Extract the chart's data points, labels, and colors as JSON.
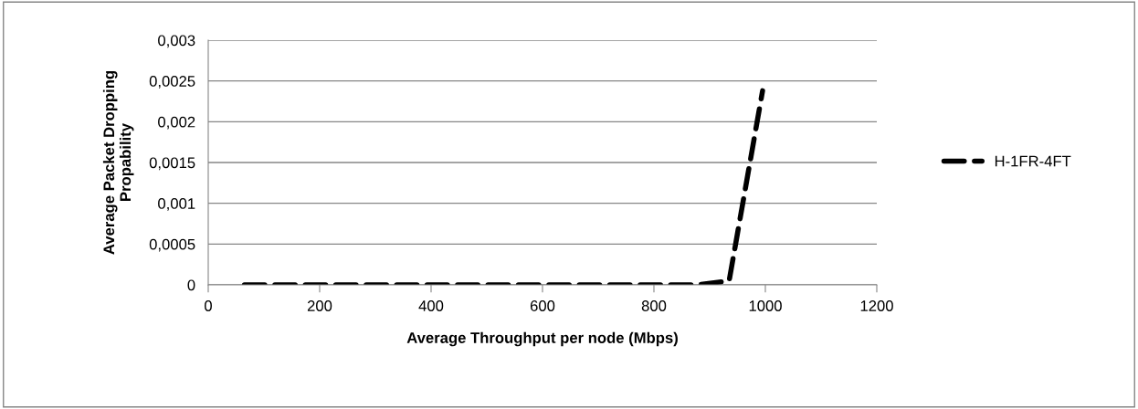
{
  "chart_data": {
    "type": "line",
    "xlabel": "Average Throughput per node (Mbps)",
    "ylabel": "Average Packet Dropping\nPropability",
    "series": [
      {
        "name": "H-1FR-4FT",
        "color": "#000000",
        "x": [
          65,
          500,
          880,
          935,
          995
        ],
        "values": [
          0,
          0,
          0,
          5e-05,
          0.00238
        ]
      }
    ],
    "xlim": [
      0,
      1200
    ],
    "xticks": [
      0,
      200,
      400,
      600,
      800,
      1000,
      1200
    ],
    "ylim": [
      0,
      0.003
    ],
    "yticks": [
      {
        "value": 0,
        "label": "0"
      },
      {
        "value": 0.0005,
        "label": "0,0005"
      },
      {
        "value": 0.001,
        "label": "0,001"
      },
      {
        "value": 0.0015,
        "label": "0,0015"
      },
      {
        "value": 0.002,
        "label": "0,002"
      },
      {
        "value": 0.0025,
        "label": "0,0025"
      },
      {
        "value": 0.003,
        "label": "0,003"
      }
    ],
    "grid": "y",
    "legend": "right",
    "line_style": "dashed",
    "marker": "none"
  }
}
